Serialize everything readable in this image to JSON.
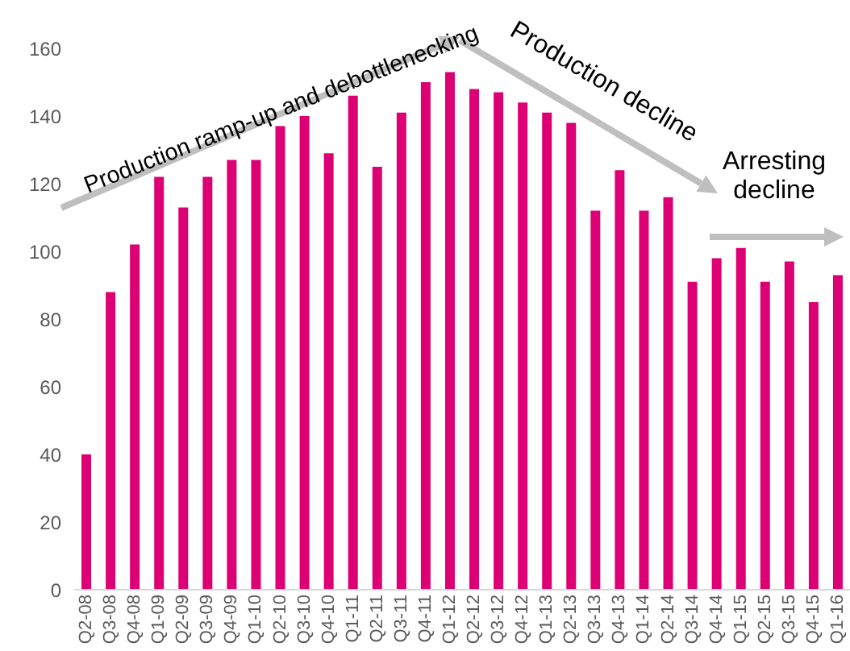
{
  "chart_data": {
    "type": "bar",
    "categories": [
      "Q2-08",
      "Q3-08",
      "Q4-08",
      "Q1-09",
      "Q2-09",
      "Q3-09",
      "Q4-09",
      "Q1-10",
      "Q2-10",
      "Q3-10",
      "Q4-10",
      "Q1-11",
      "Q2-11",
      "Q3-11",
      "Q4-11",
      "Q1-12",
      "Q2-12",
      "Q3-12",
      "Q4-12",
      "Q1-13",
      "Q2-13",
      "Q3-13",
      "Q4-13",
      "Q1-14",
      "Q2-14",
      "Q3-14",
      "Q4-14",
      "Q1-15",
      "Q2-15",
      "Q3-15",
      "Q4-15",
      "Q1-16"
    ],
    "values": [
      40,
      88,
      102,
      122,
      113,
      122,
      127,
      127,
      137,
      140,
      129,
      146,
      125,
      141,
      150,
      153,
      148,
      147,
      144,
      141,
      138,
      112,
      124,
      112,
      116,
      91,
      98,
      101,
      91,
      97,
      85,
      93
    ],
    "color": "#dd0074",
    "ylim": [
      0,
      160
    ],
    "yticks": [
      0,
      20,
      40,
      60,
      80,
      100,
      120,
      140,
      160
    ],
    "grid": false,
    "annotations": [
      "Production ramp-up and debottlenecking",
      "Production decline",
      "Arresting decline"
    ]
  }
}
